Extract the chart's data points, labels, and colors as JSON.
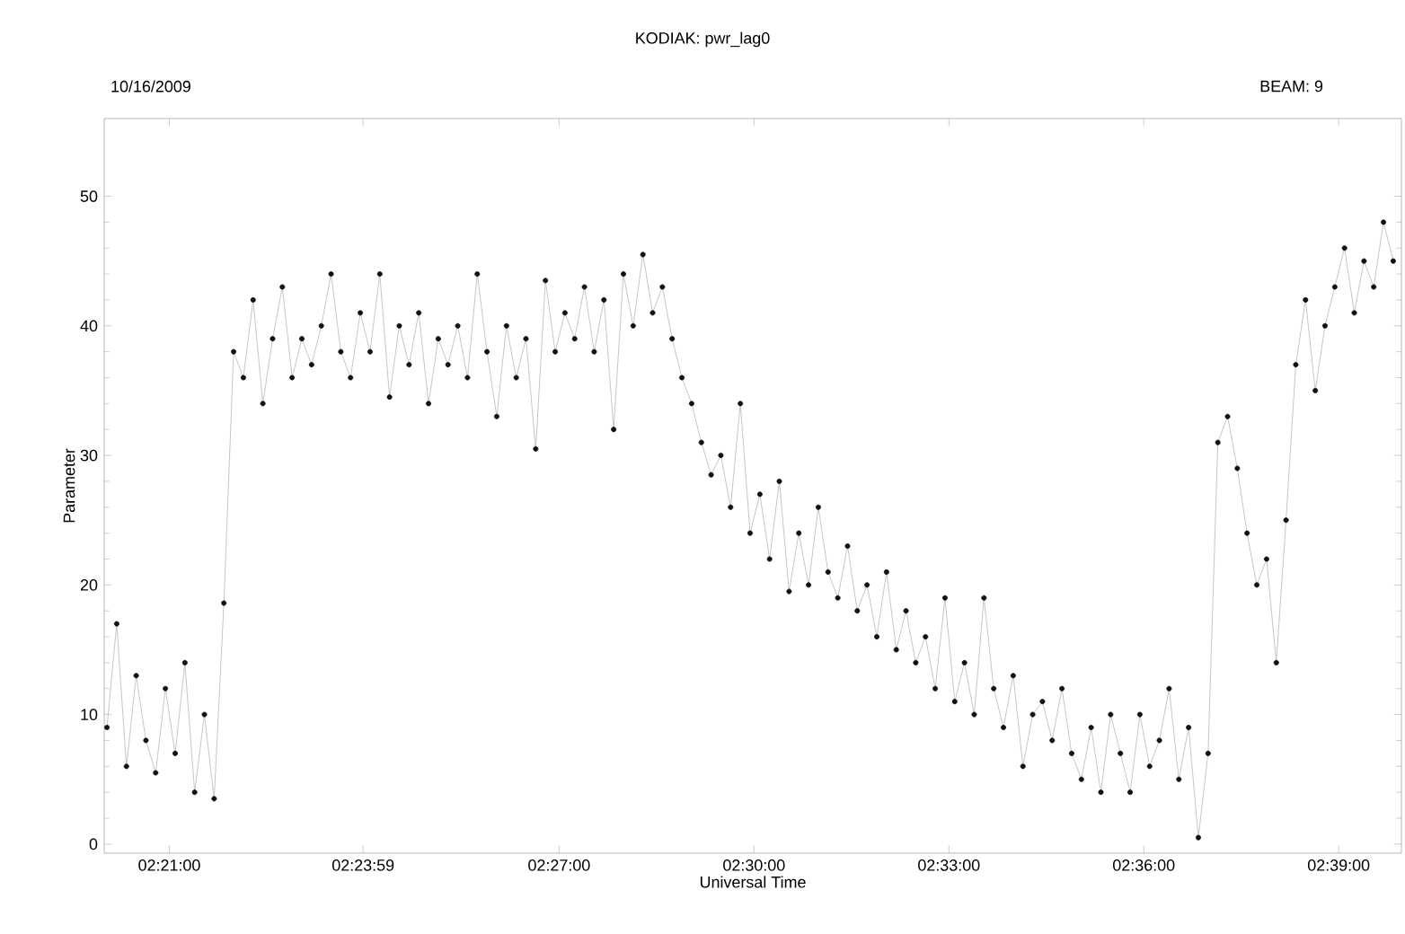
{
  "chart_data": {
    "type": "line",
    "title": "KODIAK: pwr_lag0",
    "annotations": [
      "10/16/2009",
      "BEAM:   9"
    ],
    "xlabel": "Universal Time",
    "ylabel": "Parameter",
    "marker": "circle",
    "grid": false,
    "xlim": [
      2.3333,
      2.6661
    ],
    "xticks": [
      {
        "value": 2.35,
        "label": "02:21:00"
      },
      {
        "value": 2.39972,
        "label": "02:23:59"
      },
      {
        "value": 2.45,
        "label": "02:27:00"
      },
      {
        "value": 2.5,
        "label": "02:30:00"
      },
      {
        "value": 2.55,
        "label": "02:33:00"
      },
      {
        "value": 2.6,
        "label": "02:36:00"
      },
      {
        "value": 2.65,
        "label": "02:39:00"
      }
    ],
    "ylim": [
      -0.7,
      56
    ],
    "yticks": [
      0,
      10,
      20,
      30,
      40,
      50
    ],
    "series": [
      {
        "color": "#111111",
        "x": [
          2.334,
          2.3365,
          2.339,
          2.3415,
          2.344,
          2.3465,
          2.349,
          2.3515,
          2.354,
          2.3565,
          2.359,
          2.3615,
          2.364,
          2.3665,
          2.369,
          2.3715,
          2.374,
          2.3765,
          2.379,
          2.3815,
          2.384,
          2.3865,
          2.389,
          2.3915,
          2.394,
          2.3965,
          2.399,
          2.4015,
          2.404,
          2.4065,
          2.409,
          2.4115,
          2.414,
          2.4165,
          2.419,
          2.4215,
          2.424,
          2.4265,
          2.429,
          2.4315,
          2.434,
          2.4365,
          2.439,
          2.4415,
          2.444,
          2.4465,
          2.449,
          2.4515,
          2.454,
          2.4565,
          2.459,
          2.4615,
          2.464,
          2.4665,
          2.469,
          2.4715,
          2.474,
          2.4765,
          2.479,
          2.4815,
          2.484,
          2.4865,
          2.489,
          2.4915,
          2.494,
          2.4965,
          2.499,
          2.5015,
          2.504,
          2.5065,
          2.509,
          2.5115,
          2.514,
          2.5165,
          2.519,
          2.5215,
          2.524,
          2.5265,
          2.529,
          2.5315,
          2.534,
          2.5365,
          2.539,
          2.5415,
          2.544,
          2.5465,
          2.549,
          2.5515,
          2.554,
          2.5565,
          2.559,
          2.5615,
          2.564,
          2.5665,
          2.569,
          2.5715,
          2.574,
          2.5765,
          2.579,
          2.5815,
          2.584,
          2.5865,
          2.589,
          2.5915,
          2.594,
          2.5965,
          2.599,
          2.6015,
          2.604,
          2.6065,
          2.609,
          2.6115,
          2.614,
          2.6165,
          2.619,
          2.6215,
          2.624,
          2.6265,
          2.629,
          2.6315,
          2.634,
          2.6365,
          2.639,
          2.6415,
          2.644,
          2.6465,
          2.649,
          2.6515,
          2.654,
          2.6565,
          2.659,
          2.6615,
          2.664
        ],
        "values": [
          9,
          17,
          6,
          13,
          8,
          5.5,
          12,
          7,
          14,
          4,
          10,
          3.5,
          18.6,
          38,
          36,
          42,
          34,
          39,
          43,
          36,
          39,
          37,
          40,
          44,
          38,
          36,
          41,
          38,
          44,
          34.5,
          40,
          37,
          41,
          34,
          39,
          37,
          40,
          36,
          44,
          38,
          33,
          40,
          36,
          39,
          30.5,
          43.5,
          38,
          41,
          39,
          43,
          38,
          42,
          32,
          44,
          40,
          45.5,
          41,
          43,
          39,
          36,
          34,
          31,
          28.5,
          30,
          26,
          34,
          24,
          27,
          22,
          28,
          19.5,
          24,
          20,
          26,
          21,
          19,
          23,
          18,
          20,
          16,
          21,
          15,
          18,
          14,
          16,
          12,
          19,
          11,
          14,
          10,
          19,
          12,
          9,
          13,
          6,
          10,
          11,
          8,
          12,
          7,
          5,
          9,
          4,
          10,
          7,
          4,
          10,
          6,
          8,
          12,
          5,
          9,
          0.5,
          7,
          31,
          33,
          29,
          24,
          20,
          22,
          14,
          25,
          37,
          42,
          35,
          40,
          43,
          46,
          41,
          45,
          43,
          48,
          45
        ]
      }
    ]
  }
}
